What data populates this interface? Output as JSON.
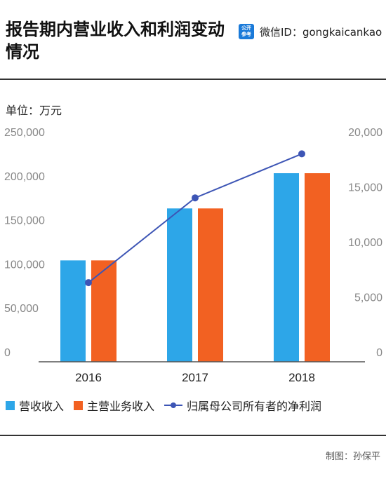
{
  "header": {
    "title": "报告期内营业收入和利润变动情况",
    "wechat_logo_text_top": "公开",
    "wechat_logo_text_bottom": "参考",
    "wechat_label": "微信ID：gongkaicankao"
  },
  "unit_label": "单位：万元",
  "credit": "制图：孙保平",
  "colors": {
    "blue_bar": "#2da6e8",
    "orange_bar": "#f26122",
    "line": "#3d55b5"
  },
  "chart_data": {
    "type": "bar",
    "categories": [
      "2016",
      "2017",
      "2018"
    ],
    "series": [
      {
        "name": "营收收入",
        "type": "bar",
        "axis": "left",
        "values": [
          104000,
          163000,
          203000
        ]
      },
      {
        "name": "主营业务收入",
        "type": "bar",
        "axis": "left",
        "values": [
          104000,
          163000,
          203000
        ]
      },
      {
        "name": "归属母公司所有者的净利润",
        "type": "line",
        "axis": "right",
        "values": [
          6300,
          14000,
          18000
        ]
      }
    ],
    "y_left": {
      "ylim": [
        0,
        250000
      ],
      "ticks": [
        "0",
        "50,000",
        "100,000",
        "150,000",
        "200,000",
        "250,000"
      ]
    },
    "y_right": {
      "ylim": [
        0,
        20000
      ],
      "ticks": [
        "0",
        "5,000",
        "10,000",
        "15,000",
        "20,000"
      ]
    },
    "legend_position": "bottom",
    "grid": false
  }
}
